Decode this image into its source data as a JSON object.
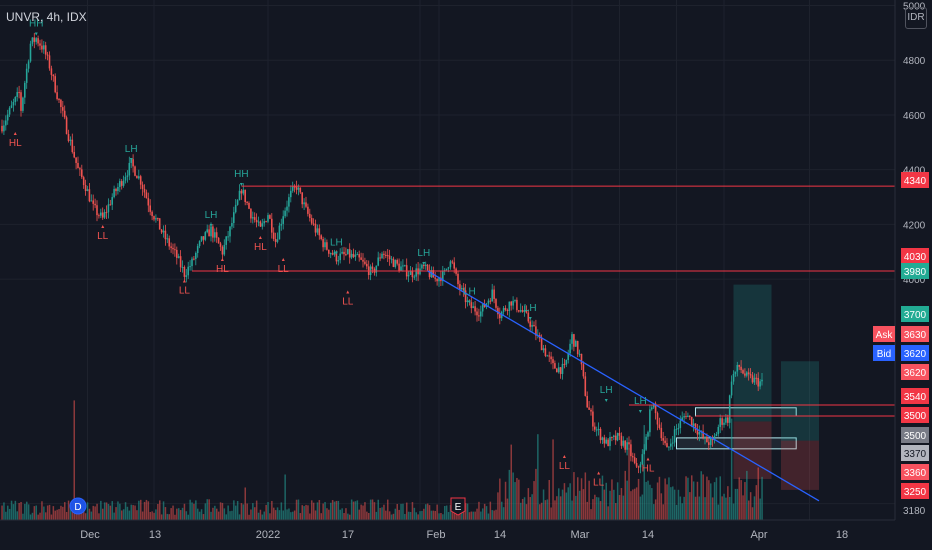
{
  "header": {
    "title": "UNVR, 4h, IDX",
    "currency": "IDR"
  },
  "chart_data": {
    "type": "candlestick",
    "title": "UNVR, 4h, IDX",
    "y_axis": {
      "currency": "IDR",
      "ticks": [
        3180,
        4000,
        4200,
        4400,
        4600,
        4800,
        5000
      ],
      "ylim": [
        3120,
        5020
      ]
    },
    "x_axis": {
      "ticks": [
        "Dec",
        "13",
        "2022",
        "17",
        "Feb",
        "14",
        "Mar",
        "14",
        "Apr",
        "18"
      ]
    },
    "price_path": [
      [
        0,
        4560
      ],
      [
        3,
        4600
      ],
      [
        6,
        4640
      ],
      [
        9,
        4680
      ],
      [
        10,
        4620
      ],
      [
        12,
        4720
      ],
      [
        15,
        4860
      ],
      [
        18,
        4880
      ],
      [
        22,
        4840
      ],
      [
        25,
        4780
      ],
      [
        28,
        4700
      ],
      [
        32,
        4600
      ],
      [
        36,
        4500
      ],
      [
        40,
        4400
      ],
      [
        44,
        4340
      ],
      [
        48,
        4260
      ],
      [
        53,
        4220
      ],
      [
        58,
        4300
      ],
      [
        63,
        4360
      ],
      [
        68,
        4420
      ],
      [
        73,
        4360
      ],
      [
        78,
        4260
      ],
      [
        85,
        4160
      ],
      [
        92,
        4080
      ],
      [
        96,
        4020
      ],
      [
        100,
        4060
      ],
      [
        105,
        4140
      ],
      [
        110,
        4180
      ],
      [
        116,
        4100
      ],
      [
        120,
        4180
      ],
      [
        126,
        4330
      ],
      [
        131,
        4240
      ],
      [
        136,
        4180
      ],
      [
        140,
        4240
      ],
      [
        144,
        4140
      ],
      [
        148,
        4240
      ],
      [
        152,
        4310
      ],
      [
        155,
        4340
      ],
      [
        160,
        4250
      ],
      [
        165,
        4180
      ],
      [
        170,
        4120
      ],
      [
        176,
        4080
      ],
      [
        182,
        4090
      ],
      [
        188,
        4070
      ],
      [
        195,
        4020
      ],
      [
        200,
        4100
      ],
      [
        208,
        4050
      ],
      [
        215,
        4020
      ],
      [
        222,
        4040
      ],
      [
        228,
        4000
      ],
      [
        233,
        4020
      ],
      [
        236,
        4080
      ],
      [
        240,
        3980
      ],
      [
        246,
        3900
      ],
      [
        252,
        3880
      ],
      [
        258,
        3950
      ],
      [
        262,
        3870
      ],
      [
        268,
        3920
      ],
      [
        274,
        3880
      ],
      [
        278,
        3840
      ],
      [
        284,
        3760
      ],
      [
        290,
        3680
      ],
      [
        296,
        3670
      ],
      [
        300,
        3790
      ],
      [
        304,
        3720
      ],
      [
        308,
        3540
      ],
      [
        312,
        3460
      ],
      [
        318,
        3400
      ],
      [
        324,
        3420
      ],
      [
        330,
        3380
      ],
      [
        334,
        3300
      ],
      [
        338,
        3370
      ],
      [
        342,
        3550
      ],
      [
        346,
        3460
      ],
      [
        350,
        3370
      ],
      [
        354,
        3440
      ],
      [
        360,
        3510
      ],
      [
        365,
        3460
      ],
      [
        370,
        3410
      ],
      [
        374,
        3400
      ],
      [
        378,
        3480
      ],
      [
        382,
        3490
      ],
      [
        384,
        3640
      ],
      [
        388,
        3680
      ],
      [
        392,
        3640
      ],
      [
        396,
        3630
      ],
      [
        400,
        3620
      ]
    ],
    "volume_spikes": [
      [
        38,
        0.92
      ],
      [
        128,
        0.25
      ],
      [
        149,
        0.35
      ],
      [
        268,
        0.58
      ],
      [
        282,
        0.66
      ],
      [
        290,
        0.62
      ],
      [
        330,
        0.55
      ],
      [
        338,
        0.73
      ],
      [
        384,
        0.78
      ]
    ],
    "trendline": {
      "from": [
        224,
        4030
      ],
      "to": [
        430,
        3190
      ]
    },
    "horizontal_lines": [
      {
        "price": 4340,
        "from": 126
      },
      {
        "price": 4030,
        "from": 100
      },
      {
        "price": 3540,
        "from": 330
      },
      {
        "price": 3500,
        "from": 365
      }
    ],
    "pivot_labels": [
      {
        "text": "HH",
        "i": 18,
        "price": 4880,
        "pos": "above"
      },
      {
        "text": "HL",
        "i": 7,
        "price": 4560,
        "pos": "below"
      },
      {
        "text": "LH",
        "i": 68,
        "price": 4420,
        "pos": "above"
      },
      {
        "text": "LL",
        "i": 53,
        "price": 4220,
        "pos": "below"
      },
      {
        "text": "LL",
        "i": 96,
        "price": 4020,
        "pos": "below"
      },
      {
        "text": "LH",
        "i": 110,
        "price": 4180,
        "pos": "above"
      },
      {
        "text": "HH",
        "i": 126,
        "price": 4330,
        "pos": "above"
      },
      {
        "text": "HL",
        "i": 116,
        "price": 4100,
        "pos": "below"
      },
      {
        "text": "HL",
        "i": 136,
        "price": 4180,
        "pos": "below"
      },
      {
        "text": "LL",
        "i": 148,
        "price": 4100,
        "pos": "below"
      },
      {
        "text": "LH",
        "i": 176,
        "price": 4080,
        "pos": "above"
      },
      {
        "text": "LL",
        "i": 182,
        "price": 3980,
        "pos": "below"
      },
      {
        "text": "LH",
        "i": 222,
        "price": 4040,
        "pos": "above"
      },
      {
        "text": "LH",
        "i": 246,
        "price": 3900,
        "pos": "above"
      },
      {
        "text": "LH",
        "i": 278,
        "price": 3840,
        "pos": "above"
      },
      {
        "text": "LL",
        "i": 296,
        "price": 3380,
        "pos": "below"
      },
      {
        "text": "LL",
        "i": 314,
        "price": 3320,
        "pos": "below"
      },
      {
        "text": "LH",
        "i": 318,
        "price": 3540,
        "pos": "above"
      },
      {
        "text": "LH",
        "i": 336,
        "price": 3500,
        "pos": "above"
      },
      {
        "text": "HL",
        "i": 340,
        "price": 3370,
        "pos": "below"
      }
    ],
    "zones": [
      {
        "x0": 365,
        "x1": 418,
        "top": 3530,
        "bottom": 3500,
        "stroke": "#b2ebf2",
        "fill": "rgba(178,235,242,0.08)"
      },
      {
        "x0": 355,
        "x1": 418,
        "top": 3420,
        "bottom": 3380,
        "stroke": "#b2ebf2",
        "fill": "rgba(178,235,242,0.08)"
      },
      {
        "x0": 385,
        "x1": 405,
        "top": 3980,
        "bottom": 3480,
        "stroke": "none",
        "fill": "rgba(38,166,154,0.22)"
      },
      {
        "x0": 385,
        "x1": 405,
        "top": 3480,
        "bottom": 3270,
        "stroke": "none",
        "fill": "rgba(239,83,80,0.22)"
      },
      {
        "x0": 410,
        "x1": 430,
        "top": 3700,
        "bottom": 3410,
        "stroke": "none",
        "fill": "rgba(38,166,154,0.22)"
      },
      {
        "x0": 410,
        "x1": 430,
        "top": 3410,
        "bottom": 3230,
        "stroke": "none",
        "fill": "rgba(239,83,80,0.22)"
      }
    ],
    "events": [
      {
        "text": "D",
        "i": 40
      },
      {
        "text": "E",
        "i": 240
      }
    ],
    "price_labels": [
      {
        "text": "4340",
        "color": "#f23645"
      },
      {
        "text": "4030",
        "color": "#f23645"
      },
      {
        "text": "3980",
        "color": "#22ab94"
      },
      {
        "text": "3700",
        "color": "#22ab94"
      },
      {
        "text": "Ask",
        "value": "3630",
        "color": "#f7525f"
      },
      {
        "text": "Bid",
        "value": "3620",
        "color": "#2962ff"
      },
      {
        "text": "3620",
        "color": "#f7525f"
      },
      {
        "text": "3540",
        "color": "#f23645"
      },
      {
        "text": "3500",
        "color": "#f23645"
      },
      {
        "text": "3500",
        "color": "#787b86"
      },
      {
        "text": "3370",
        "color": "#b2b5be",
        "dark": true
      },
      {
        "text": "3360",
        "color": "#f7525f"
      },
      {
        "text": "3250",
        "color": "#f23645"
      },
      {
        "text": "3180",
        "color": "none"
      }
    ]
  }
}
